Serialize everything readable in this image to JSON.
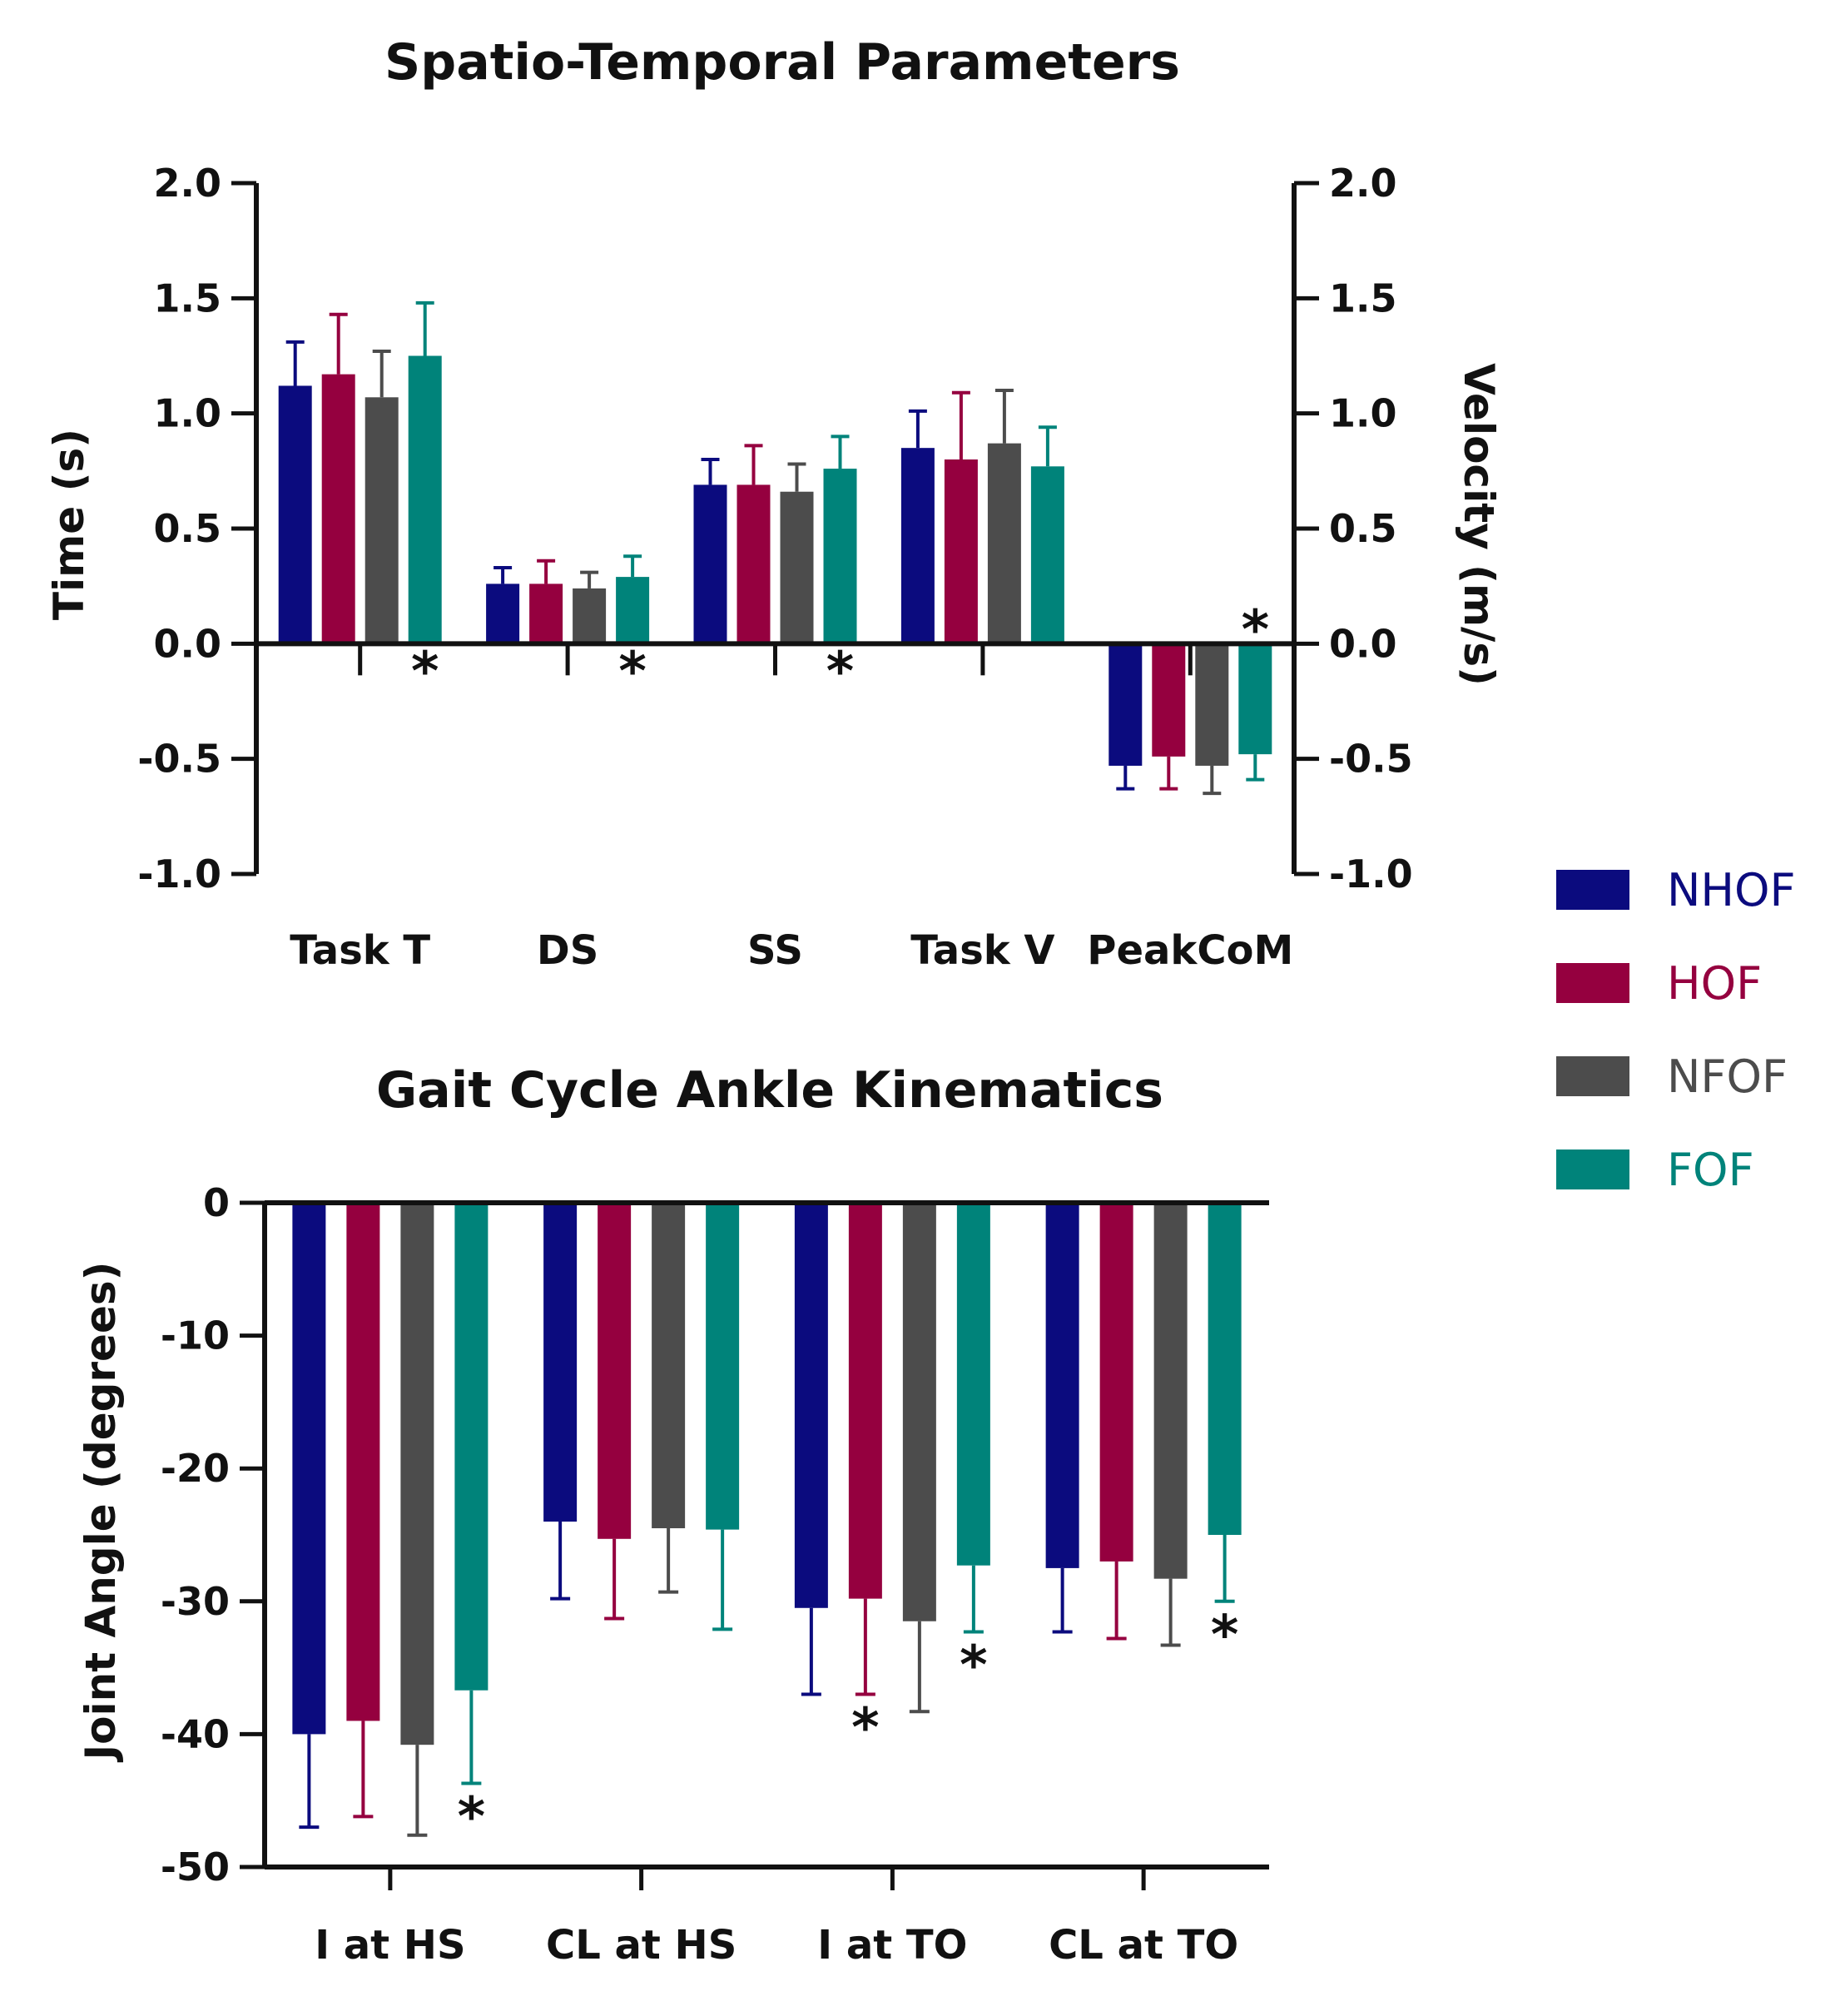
{
  "colors": {
    "NHOF": "#0b0b7e",
    "HOF": "#95003f",
    "NFOF": "#4c4c4c",
    "FOF": "#00837a"
  },
  "legend": [
    {
      "name": "NHOF",
      "color": "#0b0b7e"
    },
    {
      "name": "HOF",
      "color": "#95003f"
    },
    {
      "name": "NFOF",
      "color": "#4c4c4c"
    },
    {
      "name": "FOF",
      "color": "#00837a"
    }
  ],
  "chart_data": [
    {
      "type": "bar",
      "title": "Spatio-Temporal Parameters",
      "ylabel": "Time (s)",
      "y2label": "Velocity (m/s)",
      "ylim": [
        -1.0,
        2.0
      ],
      "yticks": [
        "2.0",
        "1.5",
        "1.0",
        "0.5",
        "0.0",
        "-0.5",
        "-1.0"
      ],
      "y2ticks": [
        "2.0",
        "1.5",
        "1.0",
        "0.5",
        "0.0",
        "-0.5",
        "-1.0"
      ],
      "categories": [
        "Task T",
        "DS",
        "SS",
        "Task V",
        "PeakCoM"
      ],
      "series": [
        {
          "name": "NHOF",
          "values": [
            1.12,
            0.26,
            0.69,
            0.85,
            -0.53
          ],
          "errors": [
            0.19,
            0.07,
            0.11,
            0.16,
            0.1
          ]
        },
        {
          "name": "HOF",
          "values": [
            1.17,
            0.26,
            0.69,
            0.8,
            -0.49
          ],
          "errors": [
            0.26,
            0.1,
            0.17,
            0.29,
            0.14
          ]
        },
        {
          "name": "NFOF",
          "values": [
            1.07,
            0.24,
            0.66,
            0.87,
            -0.53
          ],
          "errors": [
            0.2,
            0.07,
            0.12,
            0.23,
            0.12
          ]
        },
        {
          "name": "FOF",
          "values": [
            1.25,
            0.29,
            0.76,
            0.77,
            -0.48
          ],
          "errors": [
            0.23,
            0.09,
            0.14,
            0.17,
            0.11
          ]
        }
      ],
      "significance": [
        {
          "category": "Task T",
          "symbol": "*"
        },
        {
          "category": "DS",
          "symbol": "*"
        },
        {
          "category": "SS",
          "symbol": "*"
        },
        {
          "category": "PeakCoM",
          "symbol": "*"
        }
      ]
    },
    {
      "type": "bar",
      "title": "Gait Cycle Ankle Kinematics",
      "ylabel": "Joint Angle (degrees)",
      "ylim": [
        -50,
        0
      ],
      "yticks": [
        "0",
        "-10",
        "-20",
        "-30",
        "-40",
        "-50"
      ],
      "categories": [
        "I at HS",
        "CL at HS",
        "I at TO",
        "CL at TO"
      ],
      "series": [
        {
          "name": "NHOF",
          "values": [
            -40.0,
            -24.0,
            -30.5,
            -27.5
          ],
          "errors": [
            7.0,
            5.8,
            6.5,
            4.8
          ]
        },
        {
          "name": "HOF",
          "values": [
            -39.0,
            -25.3,
            -29.8,
            -27.0
          ],
          "errors": [
            7.2,
            6.0,
            7.2,
            5.8
          ]
        },
        {
          "name": "NFOF",
          "values": [
            -40.8,
            -24.5,
            -31.5,
            -28.3
          ],
          "errors": [
            6.8,
            4.8,
            6.8,
            5.0
          ]
        },
        {
          "name": "FOF",
          "values": [
            -36.7,
            -24.6,
            -27.3,
            -25.0
          ],
          "errors": [
            7.0,
            7.5,
            5.0,
            5.0
          ]
        }
      ],
      "significance": [
        {
          "category": "I at HS",
          "series": "FOF",
          "symbol": "*"
        },
        {
          "category": "I at TO",
          "series": "HOF",
          "symbol": "*"
        },
        {
          "category": "I at TO",
          "series": "FOF",
          "symbol": "*"
        },
        {
          "category": "CL at TO",
          "series": "FOF",
          "symbol": "*"
        }
      ]
    }
  ]
}
